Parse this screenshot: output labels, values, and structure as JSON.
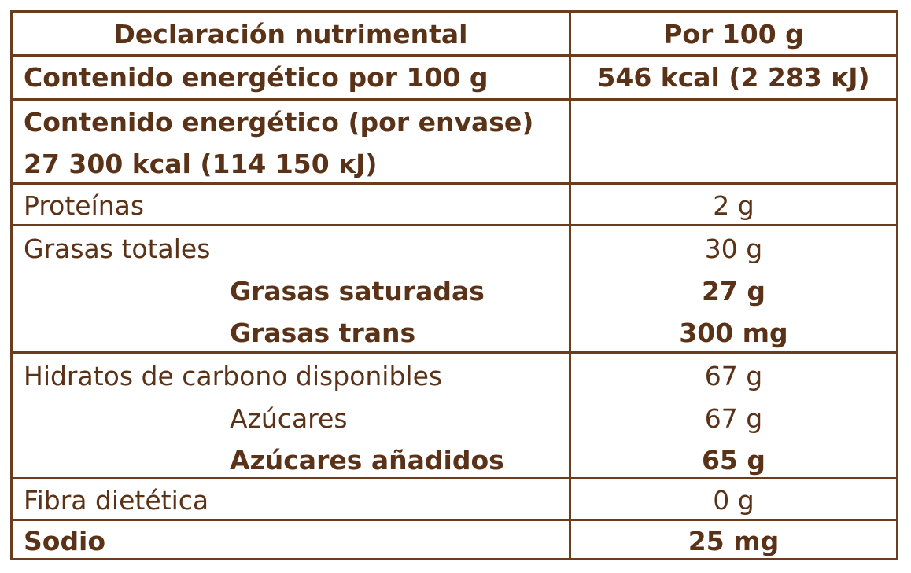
{
  "header": {
    "label": "Declaración nutrimental",
    "per": "Por 100 g"
  },
  "energy_per_100": {
    "label": "Contenido energético por 100 g",
    "value": "546 kcal (2 283 ĸJ)"
  },
  "energy_per_package": {
    "label": "Contenido energético (por envase)",
    "value": "27 300 kcal (114 150 ĸJ)"
  },
  "protein": {
    "label": "Proteínas",
    "value": "2 g"
  },
  "fat": {
    "label": "Grasas totales",
    "value": "30 g",
    "saturated": {
      "label": "Grasas saturadas",
      "value": "27 g"
    },
    "trans": {
      "label": "Grasas trans",
      "value": "300 mg"
    }
  },
  "carbs": {
    "label": "Hidratos de carbono disponibles",
    "value": "67 g",
    "sugars": {
      "label": "Azúcares",
      "value": "67 g"
    },
    "added_sugars": {
      "label": "Azúcares añadidos",
      "value": "65 g"
    }
  },
  "fiber": {
    "label": "Fibra dietética",
    "value": "0 g"
  },
  "sodium": {
    "label": "Sodio",
    "value": "25 mg"
  },
  "colors": {
    "text": "#5a3217",
    "border": "#6a3d1e",
    "background": "#ffffff"
  }
}
